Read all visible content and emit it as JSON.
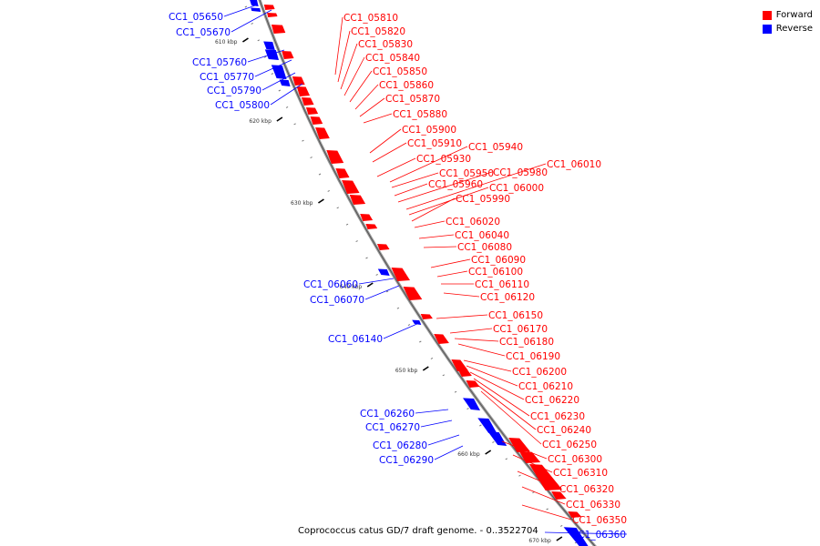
{
  "legend": {
    "forward_label": "Forward",
    "reverse_label": "Reverse",
    "forward_color": "#ff0000",
    "reverse_color": "#0000ff"
  },
  "caption": "Coprococcus catus GD/7 draft genome. - 0..3522704",
  "ticks": [
    "610 kbp",
    "620 kbp",
    "630 kbp",
    "640 kbp",
    "650 kbp",
    "660 kbp",
    "670 kbp"
  ],
  "forward_genes": [
    "CC1_05810",
    "CC1_05820",
    "CC1_05830",
    "CC1_05840",
    "CC1_05850",
    "CC1_05860",
    "CC1_05870",
    "CC1_05880",
    "CC1_05900",
    "CC1_05910",
    "CC1_05930",
    "CC1_05940",
    "CC1_05950",
    "CC1_05960",
    "CC1_05980",
    "CC1_06010",
    "CC1_06000",
    "CC1_05990",
    "CC1_06020",
    "CC1_06040",
    "CC1_06080",
    "CC1_06090",
    "CC1_06100",
    "CC1_06110",
    "CC1_06120",
    "CC1_06150",
    "CC1_06170",
    "CC1_06180",
    "CC1_06190",
    "CC1_06200",
    "CC1_06210",
    "CC1_06220",
    "CC1_06230",
    "CC1_06240",
    "CC1_06250",
    "CC1_06300",
    "CC1_06310",
    "CC1_06320",
    "CC1_06330",
    "CC1_06350"
  ],
  "reverse_genes": [
    "CC1_05650",
    "CC1_05670",
    "CC1_05760",
    "CC1_05770",
    "CC1_05790",
    "CC1_05800",
    "CC1_06060",
    "CC1_06070",
    "CC1_06140",
    "CC1_06260",
    "CC1_06270",
    "CC1_06280",
    "CC1_06290",
    "CC1_06360"
  ]
}
